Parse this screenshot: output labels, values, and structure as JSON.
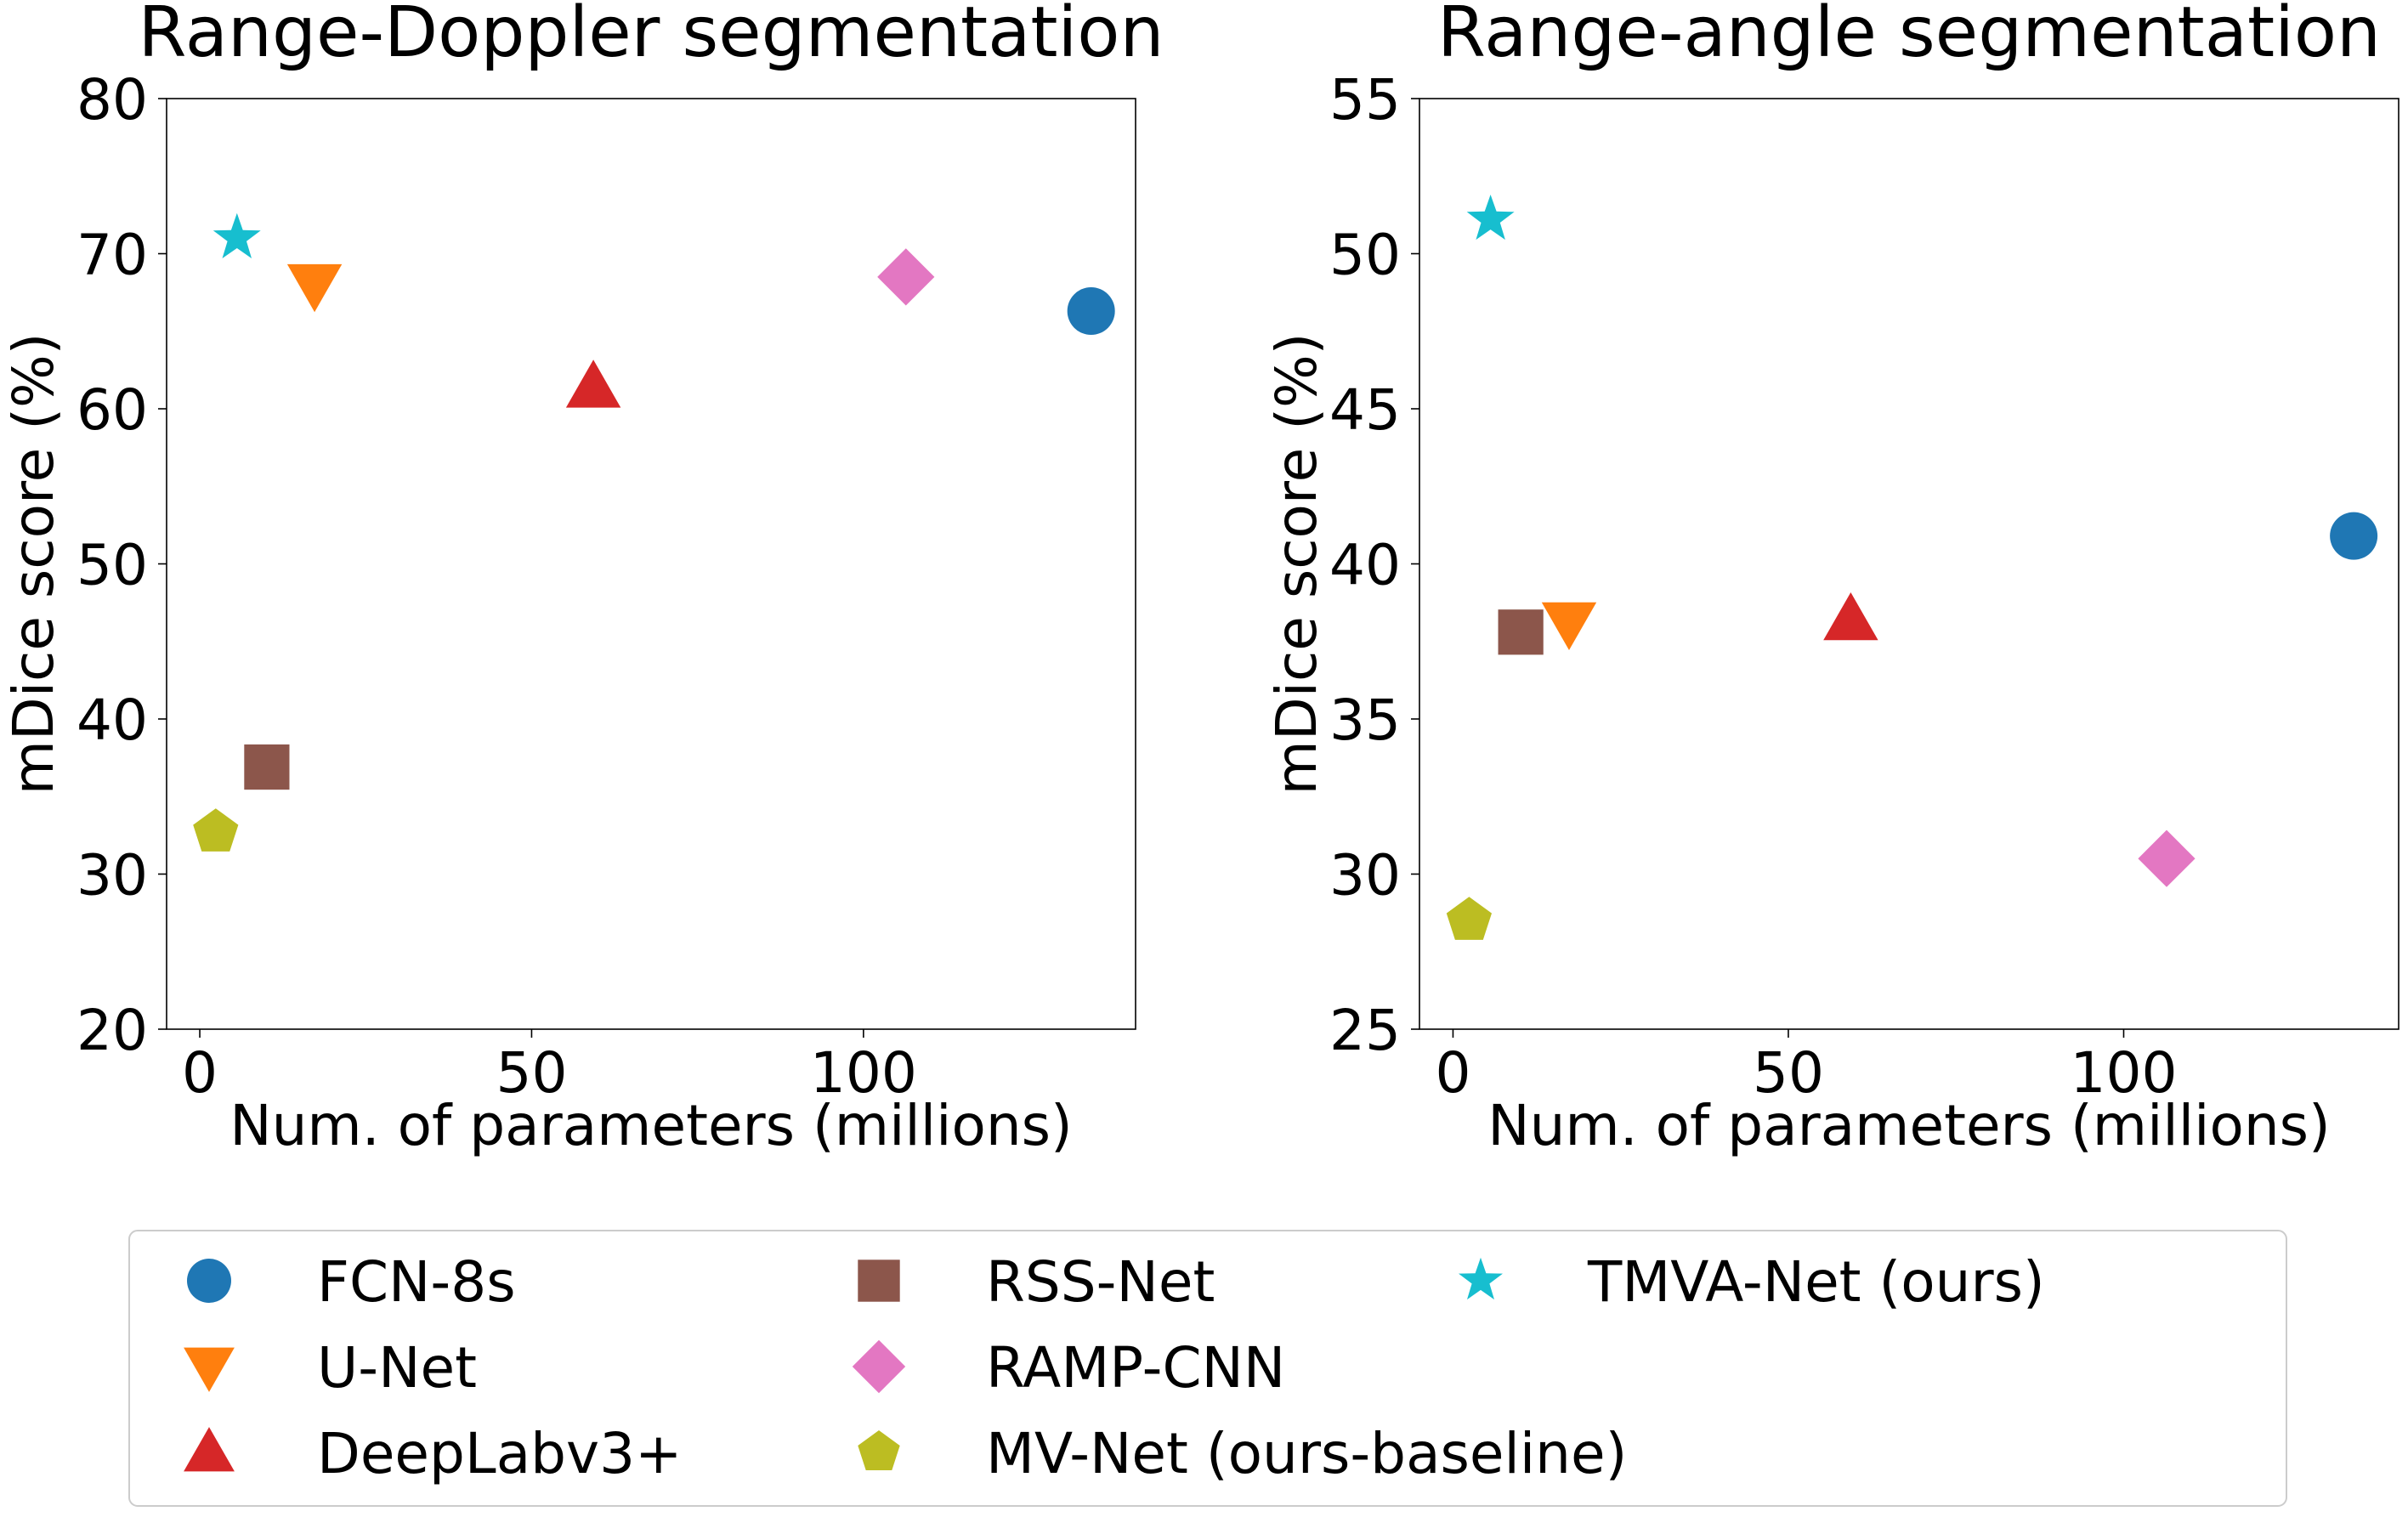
{
  "chart_data": [
    {
      "type": "scatter",
      "title": "Range-Doppler segmentation",
      "xlabel": "Num. of parameters (millions)",
      "ylabel": "mDice score (%)",
      "xlim": [
        -5,
        141
      ],
      "ylim": [
        20,
        80
      ],
      "xticks": [
        0,
        50,
        100
      ],
      "yticks": [
        20,
        30,
        40,
        50,
        60,
        70,
        80
      ],
      "grid": false,
      "series": [
        {
          "name": "FCN-8s",
          "marker": "circle",
          "color": "#1f77b4",
          "x": [
            134.3
          ],
          "y": [
            66.3
          ]
        },
        {
          "name": "U-Net",
          "marker": "triangle-down",
          "color": "#ff7f0e",
          "x": [
            17.3
          ],
          "y": [
            68.0
          ]
        },
        {
          "name": "DeepLabv3+",
          "marker": "triangle-up",
          "color": "#d62728",
          "x": [
            59.3
          ],
          "y": [
            61.4
          ]
        },
        {
          "name": "RSS-Net",
          "marker": "square",
          "color": "#8c564b",
          "x": [
            10.1
          ],
          "y": [
            36.9
          ]
        },
        {
          "name": "RAMP-CNN",
          "marker": "diamond",
          "color": "#e377c2",
          "x": [
            106.4
          ],
          "y": [
            68.5
          ]
        },
        {
          "name": "MV-Net (ours-baseline)",
          "marker": "pentagon",
          "color": "#bcbd22",
          "x": [
            2.4
          ],
          "y": [
            32.7
          ]
        },
        {
          "name": "TMVA-Net (ours)",
          "marker": "star",
          "color": "#17becf",
          "x": [
            5.6
          ],
          "y": [
            71.0
          ]
        }
      ]
    },
    {
      "type": "scatter",
      "title": "Range-angle segmentation",
      "xlabel": "Num. of parameters (millions)",
      "ylabel": "mDice score (%)",
      "xlim": [
        -5,
        141
      ],
      "ylim": [
        25,
        55
      ],
      "xticks": [
        0,
        50,
        100
      ],
      "yticks": [
        25,
        30,
        35,
        40,
        45,
        50,
        55
      ],
      "grid": false,
      "series": [
        {
          "name": "FCN-8s",
          "marker": "circle",
          "color": "#1f77b4",
          "x": [
            134.3
          ],
          "y": [
            40.9
          ]
        },
        {
          "name": "U-Net",
          "marker": "triangle-down",
          "color": "#ff7f0e",
          "x": [
            17.3
          ],
          "y": [
            38.1
          ]
        },
        {
          "name": "DeepLabv3+",
          "marker": "triangle-up",
          "color": "#d62728",
          "x": [
            59.3
          ],
          "y": [
            38.2
          ]
        },
        {
          "name": "RSS-Net",
          "marker": "square",
          "color": "#8c564b",
          "x": [
            10.1
          ],
          "y": [
            37.8
          ]
        },
        {
          "name": "RAMP-CNN",
          "marker": "diamond",
          "color": "#e377c2",
          "x": [
            106.4
          ],
          "y": [
            30.5
          ]
        },
        {
          "name": "MV-Net (ours-baseline)",
          "marker": "pentagon",
          "color": "#bcbd22",
          "x": [
            2.4
          ],
          "y": [
            28.5
          ]
        },
        {
          "name": "TMVA-Net (ours)",
          "marker": "star",
          "color": "#17becf",
          "x": [
            5.6
          ],
          "y": [
            51.1
          ]
        }
      ]
    }
  ],
  "legend": {
    "placement": "bottom",
    "columns": 3,
    "entries": [
      {
        "label": "FCN-8s",
        "marker": "circle",
        "color": "#1f77b4"
      },
      {
        "label": "U-Net",
        "marker": "triangle-down",
        "color": "#ff7f0e"
      },
      {
        "label": "DeepLabv3+",
        "marker": "triangle-up",
        "color": "#d62728"
      },
      {
        "label": "RSS-Net",
        "marker": "square",
        "color": "#8c564b"
      },
      {
        "label": "RAMP-CNN",
        "marker": "diamond",
        "color": "#e377c2"
      },
      {
        "label": "MV-Net (ours-baseline)",
        "marker": "pentagon",
        "color": "#bcbd22"
      },
      {
        "label": "TMVA-Net (ours)",
        "marker": "star",
        "color": "#17becf"
      }
    ]
  }
}
